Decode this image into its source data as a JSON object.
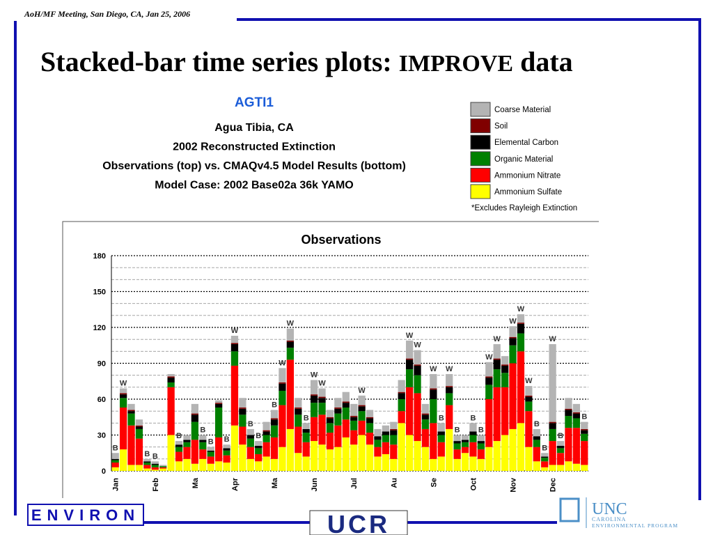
{
  "header": {
    "meeting": "AoH/MF Meeting, San Diego, CA,  Jan 25, 2006",
    "title_main": "Stacked-bar time series plots: ",
    "title_em": "IMPROVE",
    "title_end": " data"
  },
  "logos": {
    "left": "ENVIRON",
    "center": "UCR",
    "right": "UNC",
    "right_sub1": "CAROLINA",
    "right_sub2": "ENVIRONMENTAL PROGRAM"
  },
  "chart_data": {
    "type": "bar",
    "stacked": true,
    "site": "AGTI1",
    "title_lines": [
      "Agua Tibia, CA",
      "2002 Reconstructed Extinction",
      "Observations (top) vs. CMAQv4.5 Model Results (bottom)",
      "Model Case: 2002 Base02a 36k YAMO"
    ],
    "legend_note": "*Excludes Rayleigh Extinction",
    "panel_title": "Observations",
    "categories": [
      "Jan",
      null,
      null,
      null,
      null,
      "Feb",
      null,
      null,
      null,
      null,
      "Ma",
      null,
      null,
      null,
      null,
      "Apr",
      null,
      null,
      null,
      null,
      "Ma",
      null,
      null,
      null,
      null,
      "Jun",
      null,
      null,
      null,
      null,
      "Jul",
      null,
      null,
      null,
      null,
      "Au",
      null,
      null,
      null,
      null,
      "Se",
      null,
      null,
      null,
      null,
      "Oct",
      null,
      null,
      null,
      null,
      "Nov",
      null,
      null,
      null,
      null,
      "Dec",
      null,
      null,
      null,
      null
    ],
    "flags": [
      "B",
      "W",
      null,
      null,
      "B",
      "B",
      null,
      null,
      "B",
      null,
      null,
      "B",
      "B",
      null,
      "B",
      "W",
      null,
      "B",
      "B",
      null,
      "B",
      "W",
      "W",
      null,
      "B",
      "W",
      "W",
      null,
      null,
      null,
      null,
      "W",
      null,
      null,
      null,
      null,
      null,
      "W",
      "W",
      null,
      "W",
      "B",
      "W",
      "B",
      null,
      "B",
      "B",
      "W",
      "W",
      null,
      "W",
      "W",
      "W",
      "B",
      "B",
      "W",
      "B",
      null,
      null,
      "B"
    ],
    "series": [
      {
        "name": "Ammonium Sulfate",
        "color": "#ffff00",
        "values": [
          3,
          18,
          5,
          5,
          2,
          1,
          2,
          30,
          8,
          10,
          6,
          10,
          6,
          8,
          7,
          38,
          22,
          10,
          8,
          12,
          10,
          20,
          35,
          15,
          12,
          25,
          22,
          18,
          20,
          28,
          22,
          30,
          22,
          12,
          14,
          10,
          40,
          30,
          25,
          20,
          10,
          12,
          35,
          10,
          15,
          12,
          10,
          20,
          25,
          30,
          35,
          40,
          20,
          8,
          3,
          5,
          5,
          8,
          6,
          5
        ]
      },
      {
        "name": "Ammonium Nitrate",
        "color": "#ff0000",
        "values": [
          4,
          35,
          33,
          22,
          3,
          2,
          1,
          40,
          8,
          10,
          20,
          8,
          6,
          20,
          6,
          50,
          15,
          10,
          6,
          12,
          18,
          35,
          58,
          22,
          12,
          20,
          25,
          14,
          18,
          15,
          12,
          12,
          10,
          8,
          10,
          12,
          10,
          40,
          40,
          15,
          30,
          12,
          20,
          8,
          5,
          12,
          8,
          40,
          45,
          40,
          55,
          60,
          30,
          12,
          5,
          20,
          10,
          28,
          30,
          20
        ]
      },
      {
        "name": "Organic Material",
        "color": "#008000",
        "values": [
          2,
          8,
          10,
          8,
          2,
          2,
          1,
          4,
          4,
          4,
          15,
          6,
          4,
          25,
          4,
          12,
          10,
          7,
          5,
          6,
          10,
          12,
          10,
          10,
          8,
          12,
          10,
          8,
          10,
          10,
          8,
          8,
          8,
          6,
          6,
          8,
          10,
          15,
          15,
          8,
          20,
          6,
          10,
          5,
          4,
          6,
          5,
          12,
          15,
          12,
          15,
          15,
          8,
          6,
          3,
          10,
          4,
          10,
          8,
          6
        ]
      },
      {
        "name": "Elemental Carbon",
        "color": "#000000",
        "values": [
          1,
          3,
          2,
          2,
          1,
          1,
          0,
          4,
          2,
          2,
          6,
          2,
          1,
          3,
          2,
          6,
          5,
          3,
          2,
          3,
          5,
          6,
          5,
          5,
          3,
          6,
          4,
          4,
          4,
          4,
          3,
          4,
          4,
          3,
          3,
          4,
          5,
          8,
          8,
          4,
          8,
          3,
          5,
          2,
          2,
          3,
          2,
          6,
          8,
          6,
          6,
          8,
          4,
          3,
          1,
          5,
          2,
          5,
          4,
          3
        ]
      },
      {
        "name": "Soil",
        "color": "#800000",
        "values": [
          0,
          1,
          1,
          1,
          0,
          0,
          0,
          1,
          0,
          0,
          1,
          0,
          0,
          1,
          0,
          1,
          1,
          0,
          0,
          1,
          1,
          1,
          1,
          1,
          0,
          1,
          1,
          1,
          1,
          1,
          1,
          1,
          1,
          0,
          0,
          1,
          1,
          1,
          1,
          1,
          1,
          0,
          1,
          0,
          0,
          0,
          0,
          1,
          1,
          1,
          1,
          1,
          1,
          0,
          0,
          1,
          0,
          1,
          1,
          1
        ]
      },
      {
        "name": "Coarse Material",
        "color": "#b4b4b4",
        "values": [
          5,
          4,
          5,
          5,
          2,
          2,
          1,
          2,
          3,
          4,
          8,
          4,
          3,
          2,
          3,
          6,
          8,
          5,
          4,
          7,
          7,
          12,
          10,
          8,
          5,
          12,
          7,
          6,
          8,
          8,
          10,
          8,
          6,
          6,
          5,
          6,
          10,
          15,
          12,
          8,
          12,
          7,
          10,
          5,
          4,
          7,
          5,
          12,
          12,
          7,
          9,
          7,
          8,
          6,
          3,
          65,
          4,
          9,
          7,
          6
        ]
      }
    ],
    "ylim": [
      0,
      180
    ],
    "yticks": [
      0,
      30,
      60,
      90,
      120,
      150,
      180
    ],
    "yminorticks": [
      10,
      20,
      40,
      50,
      70,
      80,
      100,
      110,
      130,
      140,
      160,
      170
    ],
    "grid": true
  }
}
